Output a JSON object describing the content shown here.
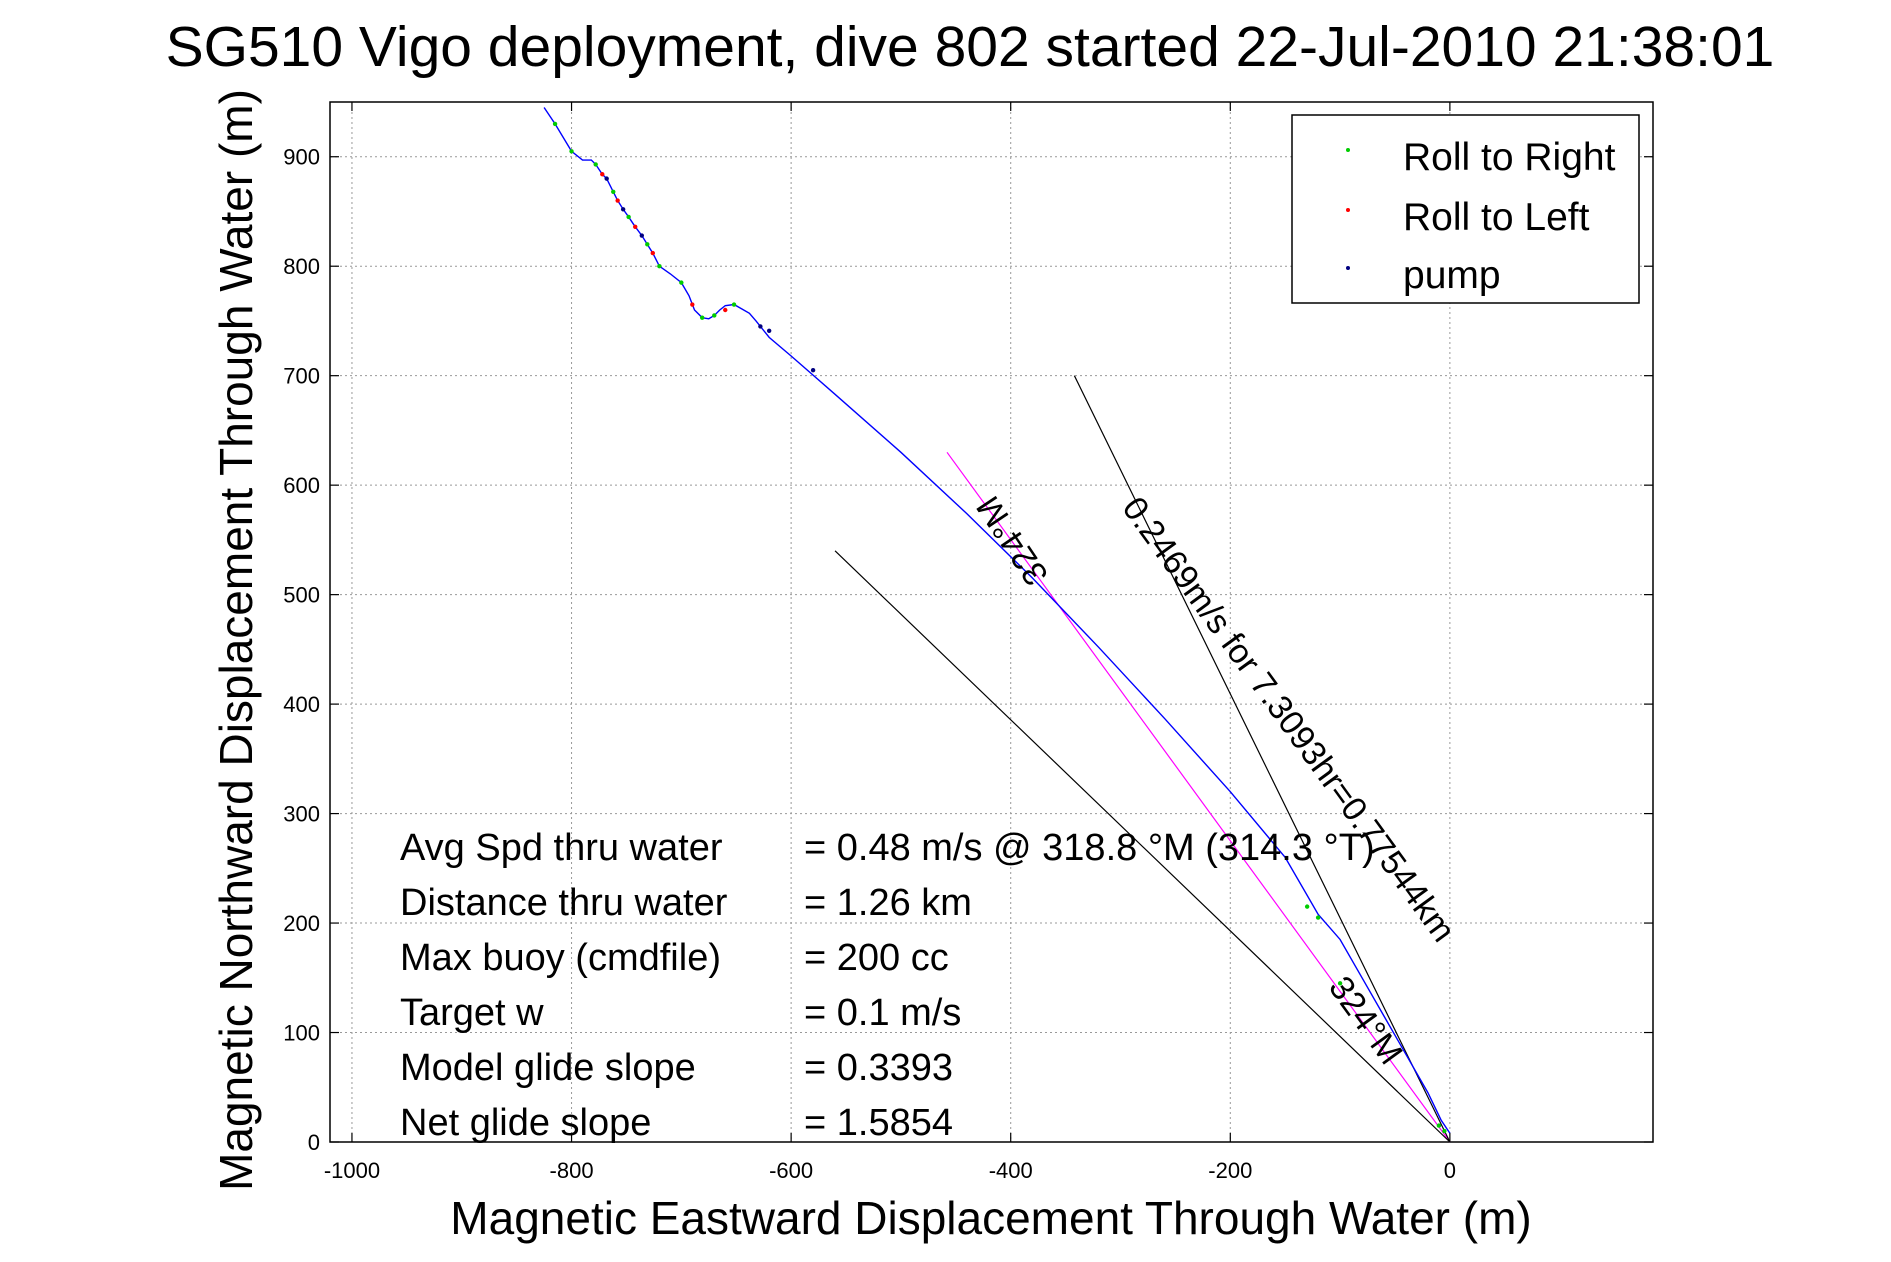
{
  "chart_data": {
    "type": "line",
    "title": "SG510 Vigo deployment, dive 802 started 22-Jul-2010 21:38:01",
    "xlabel": "Magnetic Eastward Displacement Through Water (m)",
    "ylabel": "Magnetic Northward Displacement Through Water (m)",
    "xlim": [
      -1020,
      185
    ],
    "ylim": [
      0,
      950
    ],
    "xticks": [
      -1000,
      -800,
      -600,
      -400,
      -200,
      0
    ],
    "xtick_labels": [
      "-1000",
      "-800",
      "-600",
      "-400",
      "-200",
      "0"
    ],
    "yticks": [
      0,
      100,
      200,
      300,
      400,
      500,
      600,
      700,
      800,
      900
    ],
    "ytick_labels": [
      "0",
      "100",
      "200",
      "300",
      "400",
      "500",
      "600",
      "700",
      "800",
      "900"
    ],
    "grid": true,
    "legend_position": "top-right",
    "legend": [
      "Roll to Right",
      "Roll to Left",
      "pump"
    ],
    "colors": {
      "track": "#0000ff",
      "roll_right": "#00cc00",
      "roll_left": "#ff0000",
      "pump": "#000080",
      "heading": "#ff00ff",
      "guide": "#000000",
      "grid": "#999999"
    },
    "series": [
      {
        "name": "track",
        "x": [
          -825,
          -815,
          -800,
          -790,
          -782,
          -778,
          -772,
          -768,
          -762,
          -758,
          -753,
          -748,
          -742,
          -736,
          -731,
          -726,
          -720,
          -710,
          -700,
          -693,
          -688,
          -681,
          -675,
          -670,
          -665,
          -660,
          -652,
          -645,
          -638,
          -632,
          -628,
          -620,
          -600,
          -560,
          -500,
          -440,
          -380,
          -320,
          -260,
          -200,
          -150,
          -120,
          -100,
          -80,
          -60,
          -40,
          -20,
          -8,
          0
        ],
        "y": [
          945,
          930,
          905,
          897,
          897,
          893,
          884,
          880,
          868,
          860,
          852,
          845,
          836,
          828,
          820,
          812,
          800,
          793,
          785,
          773,
          760,
          753,
          752,
          755,
          760,
          764,
          765,
          761,
          757,
          750,
          745,
          735,
          718,
          683,
          630,
          574,
          515,
          452,
          387,
          320,
          260,
          208,
          185,
          150,
          115,
          80,
          45,
          20,
          8
        ]
      },
      {
        "name": "Roll to Right",
        "x": [
          -815,
          -800,
          -778,
          -762,
          -748,
          -731,
          -720,
          -700,
          -681,
          -670,
          -652,
          -130,
          -120,
          -100,
          -10,
          -5
        ],
        "y": [
          930,
          905,
          893,
          868,
          845,
          820,
          800,
          785,
          753,
          755,
          765,
          215,
          205,
          145,
          15,
          10
        ]
      },
      {
        "name": "Roll to Left",
        "x": [
          -772,
          -758,
          -742,
          -726,
          -690,
          -660
        ],
        "y": [
          884,
          860,
          836,
          812,
          765,
          760
        ]
      },
      {
        "name": "pump",
        "x": [
          -768,
          -753,
          -736,
          -628,
          -620,
          -580
        ],
        "y": [
          880,
          852,
          828,
          745,
          741,
          705
        ]
      }
    ],
    "lines": [
      {
        "name": "heading",
        "x": [
          -458,
          0
        ],
        "y": [
          630,
          0
        ]
      },
      {
        "name": "guide-north",
        "x": [
          -342,
          0
        ],
        "y": [
          700,
          0
        ]
      },
      {
        "name": "guide-west",
        "x": [
          -560,
          0
        ],
        "y": [
          540,
          0
        ]
      }
    ],
    "annotations": [
      {
        "text": "0.2469m/s for 7.3093hr=0.77544km",
        "x": -155,
        "y": 380,
        "rotation": 54
      },
      {
        "text": "324°M",
        "x": -390,
        "y": 555,
        "rotation": 236
      },
      {
        "text": "324°M",
        "x": -85,
        "y": 105,
        "rotation": 54
      }
    ],
    "stats": [
      {
        "label": "Avg Spd thru water",
        "value": "=  0.48 m/s @ 318.8  °M (314.3 °T)"
      },
      {
        "label": "Distance thru water",
        "value": "=  1.26 km"
      },
      {
        "label": "Max buoy (cmdfile)",
        "value": "= 200 cc"
      },
      {
        "label": "Target w",
        "value": "= 0.1 m/s"
      },
      {
        "label": "Model glide slope",
        "value": "= 0.3393"
      },
      {
        "label": "Net glide slope",
        "value": "= 1.5854"
      }
    ]
  }
}
